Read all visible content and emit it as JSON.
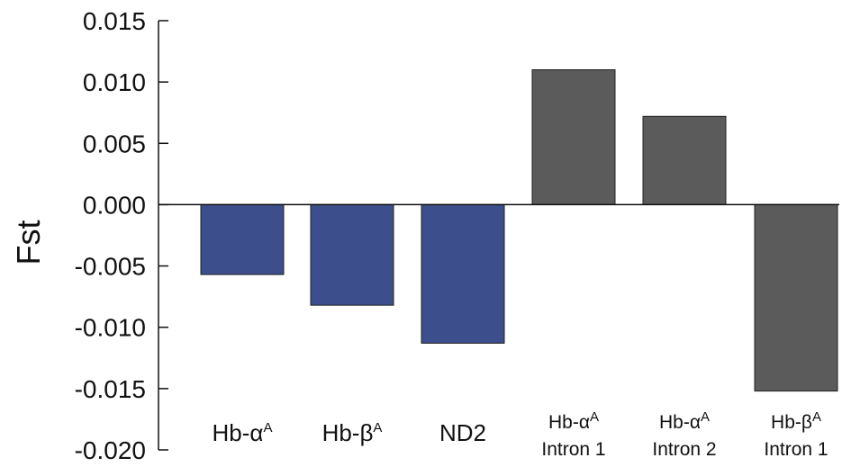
{
  "chart_data": {
    "type": "bar",
    "title": "",
    "xlabel": "",
    "ylabel": "Fst",
    "ylim": [
      -0.02,
      0.015
    ],
    "yticks": [
      0.015,
      0.01,
      0.005,
      0.0,
      -0.005,
      -0.01,
      -0.015,
      -0.02
    ],
    "ytick_labels": [
      "0.015",
      "0.010",
      "0.005",
      "0.000",
      "-0.005",
      "-0.010",
      "-0.015",
      "-0.020"
    ],
    "grid": false,
    "legend": "none",
    "categories": [
      {
        "line1": "Hb-α",
        "sup": "A",
        "line2": ""
      },
      {
        "line1": "Hb-β",
        "sup": "A",
        "line2": ""
      },
      {
        "line1": "ND2",
        "sup": "",
        "line2": ""
      },
      {
        "line1": "Hb-α",
        "sup": "A",
        "line2": "Intron 1"
      },
      {
        "line1": "Hb-α",
        "sup": "A",
        "line2": "Intron 2"
      },
      {
        "line1": "Hb-β",
        "sup": "A",
        "line2": "Intron 1"
      }
    ],
    "values": [
      -0.0057,
      -0.0082,
      -0.0113,
      0.011,
      0.0072,
      -0.0152
    ],
    "colors": [
      "#3d4e8c",
      "#3d4e8c",
      "#3d4e8c",
      "#5b5b5b",
      "#5b5b5b",
      "#5b5b5b"
    ]
  }
}
